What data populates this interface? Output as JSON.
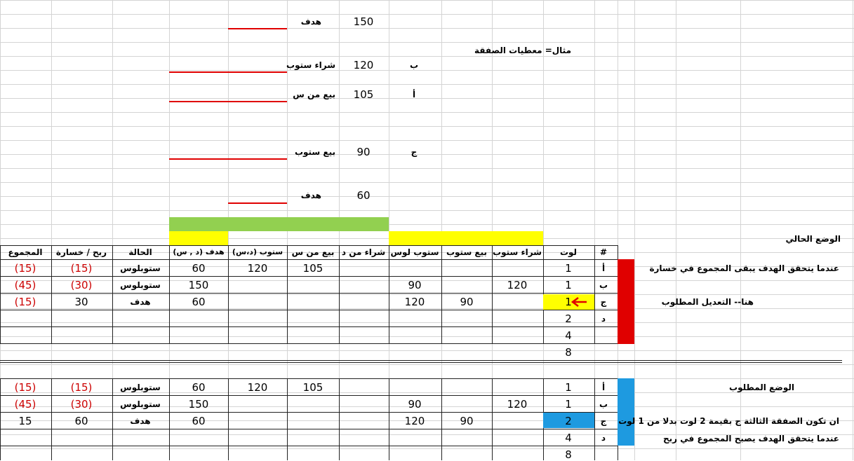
{
  "colors": {
    "red": "#e00000",
    "green": "#92d050",
    "yellow": "#ffff00",
    "blue": "#1e9ae0",
    "loss": "#cc0000"
  },
  "example": {
    "title": "مثال= معطيات الصفقة",
    "rows": [
      {
        "label": "هدف",
        "value": "150",
        "letter": ""
      },
      {
        "label": "شراء ستوب",
        "value": "120",
        "letter": "ب"
      },
      {
        "label": "بيع من س",
        "value": "105",
        "letter": "أ"
      },
      {
        "label": "بيع ستوب",
        "value": "90",
        "letter": "ج"
      },
      {
        "label": "هدف",
        "value": "60",
        "letter": ""
      }
    ]
  },
  "current_title": "الوضع الحالي",
  "required_title": "الوضع المطلوب",
  "headers": [
    "#",
    "لوت",
    "شراء ستوب",
    "بيع ستوب",
    "ستوب لوس",
    "شراء من د",
    "بيع من س",
    "ستوب (د،س)",
    "هدف (د , س)",
    "الحالة",
    "ربح / خسارة",
    "المجموع"
  ],
  "current": {
    "rows": [
      {
        "letter": "أ",
        "lot": "1",
        "buy_stop": "",
        "sell_stop": "",
        "stop_loss": "",
        "buy_from_d": "",
        "sell_from_s": "105",
        "stop_ds": "120",
        "target": "60",
        "status": "ستوبلوس",
        "pnl": "(15)",
        "total": "(15)"
      },
      {
        "letter": "ب",
        "lot": "1",
        "buy_stop": "120",
        "sell_stop": "",
        "stop_loss": "90",
        "buy_from_d": "",
        "sell_from_s": "",
        "stop_ds": "",
        "target": "150",
        "status": "ستوبلوس",
        "pnl": "(30)",
        "total": "(45)"
      },
      {
        "letter": "ج",
        "lot": "1",
        "buy_stop": "",
        "sell_stop": "90",
        "stop_loss": "120",
        "buy_from_d": "",
        "sell_from_s": "",
        "stop_ds": "",
        "target": "60",
        "status": "هدف",
        "pnl": "30",
        "total": "(15)"
      },
      {
        "letter": "د",
        "lot": "2",
        "buy_stop": "",
        "sell_stop": "",
        "stop_loss": "",
        "buy_from_d": "",
        "sell_from_s": "",
        "stop_ds": "",
        "target": "",
        "status": "",
        "pnl": "",
        "total": ""
      },
      {
        "letter": "",
        "lot": "4",
        "buy_stop": "",
        "sell_stop": "",
        "stop_loss": "",
        "buy_from_d": "",
        "sell_from_s": "",
        "stop_ds": "",
        "target": "",
        "status": "",
        "pnl": "",
        "total": ""
      },
      {
        "letter": "",
        "lot": "8",
        "buy_stop": "",
        "sell_stop": "",
        "stop_loss": "",
        "buy_from_d": "",
        "sell_from_s": "",
        "stop_ds": "",
        "target": "",
        "status": "",
        "pnl": "",
        "total": ""
      }
    ],
    "note1": "عندما يتحقق الهدف يبقى المجموع في خسارة",
    "note2": "هنا-- التعديل المطلوب"
  },
  "required": {
    "rows": [
      {
        "letter": "أ",
        "lot": "1",
        "buy_stop": "",
        "sell_stop": "",
        "stop_loss": "",
        "buy_from_d": "",
        "sell_from_s": "105",
        "stop_ds": "120",
        "target": "60",
        "status": "ستوبلوس",
        "pnl": "(15)",
        "total": "(15)"
      },
      {
        "letter": "ب",
        "lot": "1",
        "buy_stop": "120",
        "sell_stop": "",
        "stop_loss": "90",
        "buy_from_d": "",
        "sell_from_s": "",
        "stop_ds": "",
        "target": "150",
        "status": "ستوبلوس",
        "pnl": "(30)",
        "total": "(45)"
      },
      {
        "letter": "ج",
        "lot": "2",
        "buy_stop": "",
        "sell_stop": "90",
        "stop_loss": "120",
        "buy_from_d": "",
        "sell_from_s": "",
        "stop_ds": "",
        "target": "60",
        "status": "هدف",
        "pnl": "60",
        "total": "15"
      },
      {
        "letter": "د",
        "lot": "4",
        "buy_stop": "",
        "sell_stop": "",
        "stop_loss": "",
        "buy_from_d": "",
        "sell_from_s": "",
        "stop_ds": "",
        "target": "",
        "status": "",
        "pnl": "",
        "total": ""
      },
      {
        "letter": "",
        "lot": "8",
        "buy_stop": "",
        "sell_stop": "",
        "stop_loss": "",
        "buy_from_d": "",
        "sell_from_s": "",
        "stop_ds": "",
        "target": "",
        "status": "",
        "pnl": "",
        "total": ""
      }
    ],
    "note1": "ان تكون الصفقة الثالثة ج بقيمة 2 لوت  بدلا من 1 لوت",
    "note2": "عندما يتحقق الهدف يصبح المجموع في ربح"
  }
}
